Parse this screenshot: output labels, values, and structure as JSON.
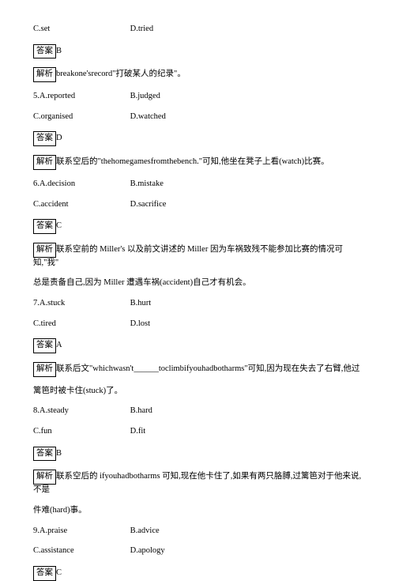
{
  "q4": {
    "optC": "C.set",
    "optD": "D.tried",
    "answerLabel": "答案",
    "answerVal": "B",
    "parseLabel": "解析",
    "parseText": "breakone'srecord\"打破某人的纪录\"。"
  },
  "q5": {
    "num": "5.",
    "optA": "A.reported",
    "optB": "B.judged",
    "optC": "C.organised",
    "optD": "D.watched",
    "answerLabel": "答案",
    "answerVal": "D",
    "parseLabel": "解析",
    "parseText": "联系空后的\"thehomegamesfromthebench.\"可知,他坐在凳子上看(watch)比赛。"
  },
  "q6": {
    "num": "6.",
    "optA": "A.decision",
    "optB": "B.mistake",
    "optC": "C.accident",
    "optD": "D.sacrifice",
    "answerLabel": "答案",
    "answerVal": "C",
    "parseLabel": "解析",
    "parseText1": "联系空前的 Miller's 以及前文讲述的 Miller 因为车祸致残不能参加比赛的情况可知,\"我\"",
    "parseText2": "总是责备自己,因为 Miller 遭遇车祸(accident)自己才有机会。"
  },
  "q7": {
    "num": "7.",
    "optA": "A.stuck",
    "optB": "B.hurt",
    "optC": "C.tired",
    "optD": "D.lost",
    "answerLabel": "答案",
    "answerVal": "A",
    "parseLabel": "解析",
    "parseText1": "联系后文\"whichwasn't______toclimbifyouhadbotharms\"可知,因为现在失去了右臂,他过",
    "parseText2": "篱笆时被卡住(stuck)了。"
  },
  "q8": {
    "num": "8.",
    "optA": "A.steady",
    "optB": "B.hard",
    "optC": "C.fun",
    "optD": "D.fit",
    "answerLabel": "答案",
    "answerVal": "B",
    "parseLabel": "解析",
    "parseText1": "联系空后的 ifyouhadbotharms 可知,现在他卡住了,如果有两只胳膊,过篱笆对于他来说,不是",
    "parseText2": "件难(hard)事。"
  },
  "q9": {
    "num": "9.",
    "optA": "A.praise",
    "optB": "B.advice",
    "optC": "C.assistance",
    "optD": "D.apology",
    "answerLabel": "答案",
    "answerVal": "C"
  }
}
